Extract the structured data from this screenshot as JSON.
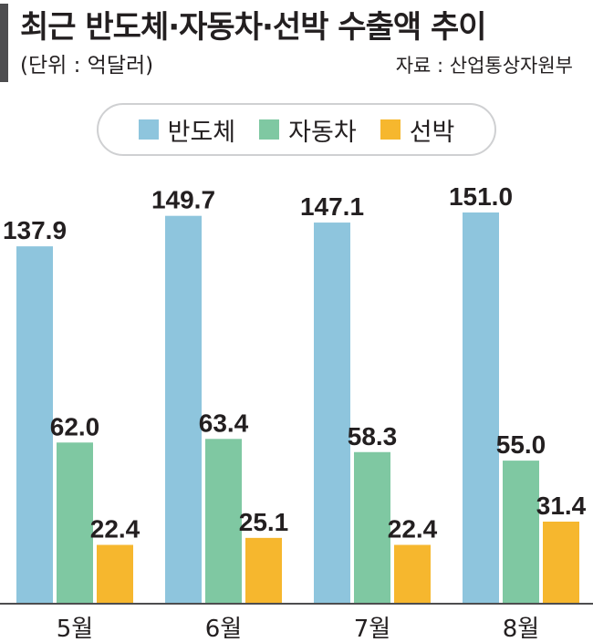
{
  "header": {
    "title": "최근 반도체·자동차·선박 수출액 추이",
    "unit": "(단위 : 억달러)",
    "source": "자료 : 산업통상자원부"
  },
  "chart_data": {
    "type": "bar",
    "title": "최근 반도체·자동차·선박 수출액 추이",
    "unit": "억달러",
    "categories": [
      "5월",
      "6월",
      "7월",
      "8월"
    ],
    "series": [
      {
        "name": "반도체",
        "color": "#8ec5dd",
        "values": [
          137.9,
          149.7,
          147.1,
          151.0
        ]
      },
      {
        "name": "자동차",
        "color": "#7fc8a2",
        "values": [
          62.0,
          63.4,
          58.3,
          55.0
        ]
      },
      {
        "name": "선박",
        "color": "#f6b72e",
        "values": [
          22.4,
          25.1,
          22.4,
          31.4
        ]
      }
    ],
    "value_labels": [
      [
        "137.9",
        "149.7",
        "147.1",
        "151.0"
      ],
      [
        "62.0",
        "63.4",
        "58.3",
        "55.0"
      ],
      [
        "22.4",
        "25.1",
        "22.4",
        "31.4"
      ]
    ],
    "legend_position": "top-center",
    "grid": false
  }
}
